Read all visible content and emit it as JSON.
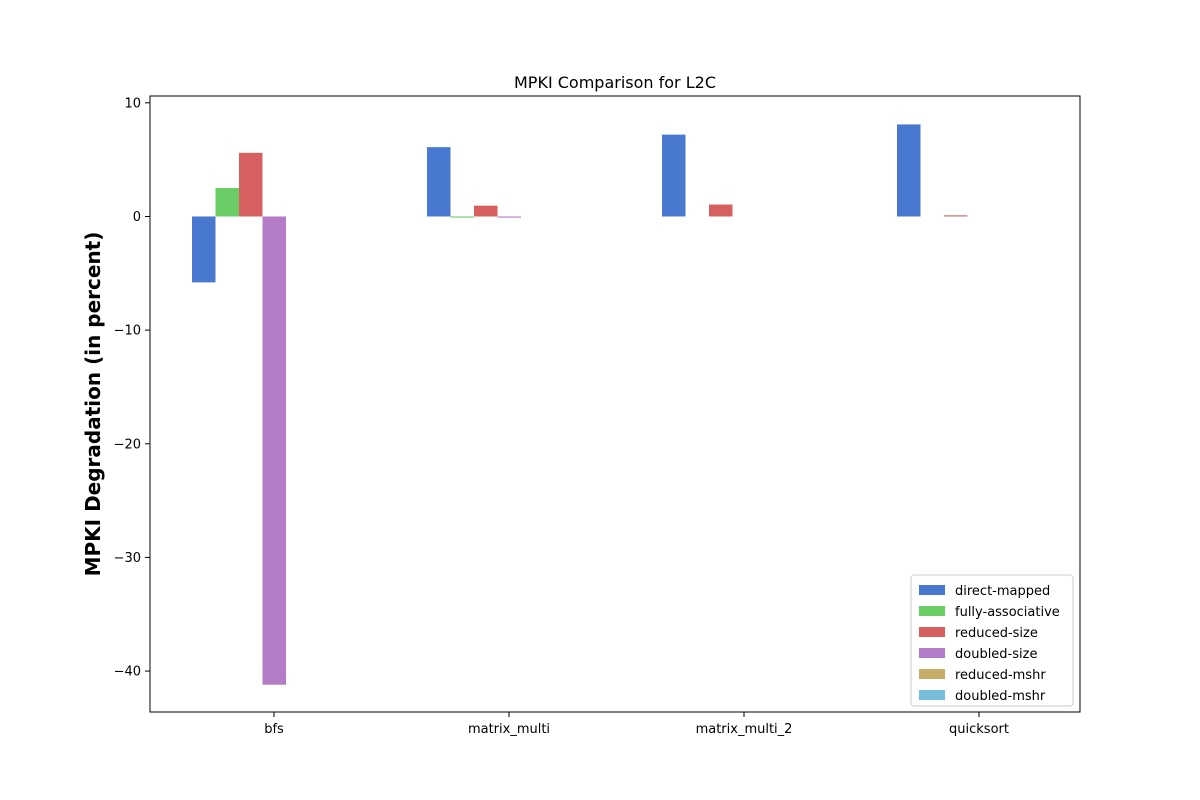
{
  "chart_data": {
    "type": "bar",
    "title": "MPKI Comparison for L2C",
    "xlabel": "",
    "ylabel": "MPKI Degradation (in percent)",
    "categories": [
      "bfs",
      "matrix_multi",
      "matrix_multi_2",
      "quicksort"
    ],
    "series": [
      {
        "name": "direct-mapped",
        "color": "#4878d0",
        "values": [
          -5.8,
          6.1,
          7.2,
          8.1
        ]
      },
      {
        "name": "fully-associative",
        "color": "#6acc64",
        "values": [
          2.5,
          -0.1,
          0.0,
          0.0
        ]
      },
      {
        "name": "reduced-size",
        "color": "#d65f5f",
        "values": [
          5.6,
          0.95,
          1.05,
          0.1
        ]
      },
      {
        "name": "doubled-size",
        "color": "#b47cc7",
        "values": [
          -41.2,
          -0.1,
          0.0,
          0.0
        ]
      },
      {
        "name": "reduced-mshr",
        "color": "#c4ad66",
        "values": [
          0,
          0,
          0,
          0
        ]
      },
      {
        "name": "doubled-mshr",
        "color": "#77bedb",
        "values": [
          0,
          0,
          0,
          0
        ]
      }
    ],
    "ylim": [
      -43.6,
      10.6
    ],
    "yticks": [
      10,
      0,
      -10,
      -20,
      -30,
      -40
    ],
    "ytick_labels": [
      "10",
      "0",
      "−10",
      "−20",
      "−30",
      "−40"
    ],
    "grid": false,
    "legend_position": "lower-right"
  }
}
